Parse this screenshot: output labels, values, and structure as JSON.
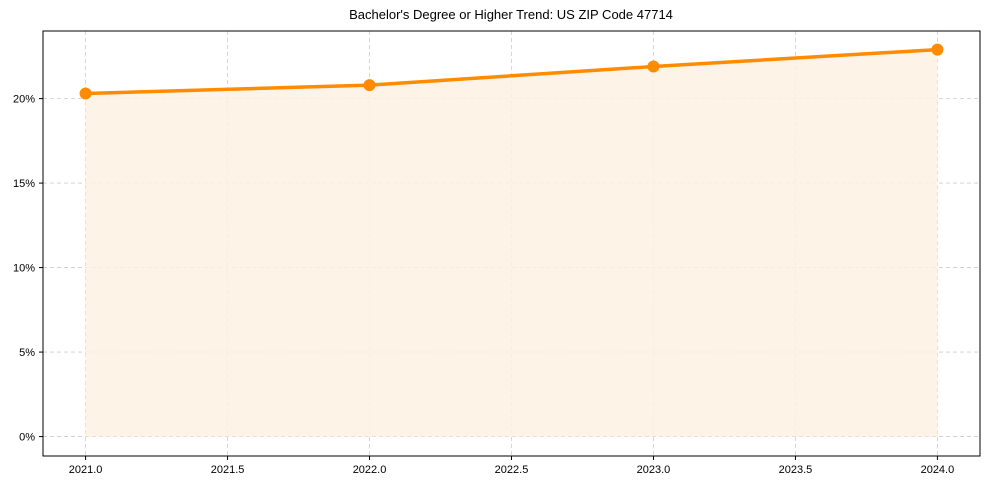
{
  "chart_data": {
    "type": "line",
    "title": "Bachelor's Degree or Higher Trend: US ZIP Code 47714",
    "xlabel": "",
    "ylabel": "",
    "x": [
      2021,
      2022,
      2023,
      2024
    ],
    "series": [
      {
        "name": "Bachelor's Degree or Higher",
        "values": [
          20.3,
          20.8,
          21.9,
          22.9
        ],
        "color": "#ff8c00",
        "fill": "#fdf1e3"
      }
    ],
    "xlim": [
      2020.85,
      2024.15
    ],
    "ylim": [
      -1.15,
      24.0
    ],
    "x_ticks": [
      "2021.0",
      "2021.5",
      "2022.0",
      "2022.5",
      "2023.0",
      "2023.5",
      "2024.0"
    ],
    "y_ticks": [
      "0%",
      "5%",
      "10%",
      "15%",
      "20%"
    ],
    "grid": true,
    "legend": null
  }
}
